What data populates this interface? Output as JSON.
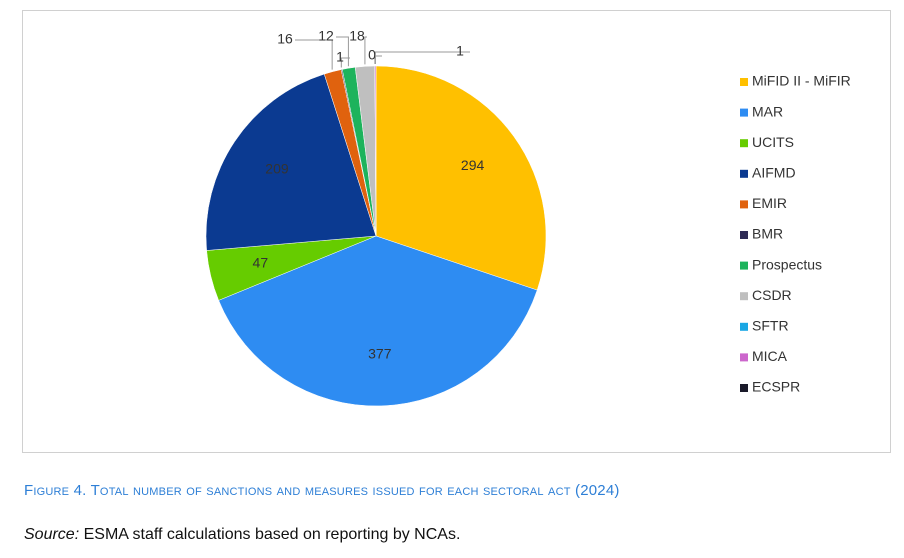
{
  "chart_data": {
    "type": "pie",
    "categories": [
      "MiFID II - MiFIR",
      "MAR",
      "UCITS",
      "AIFMD",
      "EMIR",
      "BMR",
      "Prospectus",
      "CSDR",
      "SFTR",
      "MICA",
      "ECSPR"
    ],
    "values": [
      294,
      377,
      47,
      209,
      16,
      1,
      12,
      18,
      0,
      1,
      null
    ],
    "colors": [
      "#ffc000",
      "#2e8cf2",
      "#66cc00",
      "#0b3a91",
      "#e0620e",
      "#2e2a55",
      "#1db35c",
      "#bfbfbf",
      "#1aa7e4",
      "#cc66cc",
      "#1a1a2a"
    ],
    "legend": "right"
  },
  "caption": "Figure 4. Total number of sanctions and measures issued for each sectoral act (2024)",
  "source_label": "Source:",
  "source_text": "ESMA staff calculations based on reporting by NCAs."
}
